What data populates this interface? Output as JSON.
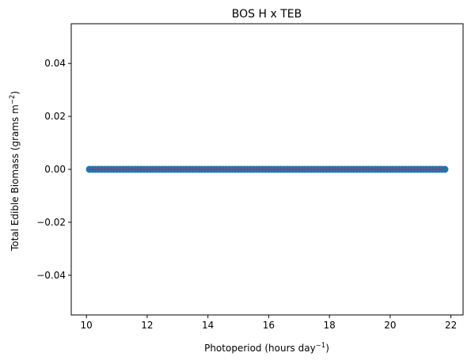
{
  "chart_data": {
    "type": "scatter",
    "title": "BOS H x TEB",
    "xlabel": {
      "base": "Photoperiod (hours day",
      "sup": "−1",
      "tail": ")"
    },
    "ylabel": {
      "base": "Total Edible Biomass (grams m",
      "sup": "−2",
      "tail": ")"
    },
    "xlim": [
      9.5,
      22.4
    ],
    "ylim": [
      -0.055,
      0.055
    ],
    "x_ticks": [
      10,
      12,
      14,
      16,
      18,
      20,
      22
    ],
    "x_tick_labels": [
      "10",
      "12",
      "14",
      "16",
      "18",
      "20",
      "22"
    ],
    "y_ticks": [
      0.04,
      0.02,
      0.0,
      -0.02,
      -0.04
    ],
    "y_tick_labels": [
      "0.04",
      "0.02",
      "0.00",
      "−0.02",
      "−0.04"
    ],
    "grid": false,
    "series": [
      {
        "kind": "scatter",
        "color": "#1f77b4",
        "x_range": [
          10.1,
          21.8
        ],
        "x_step": 0.1,
        "y": 0
      },
      {
        "kind": "line",
        "color": "#d62728",
        "x": [
          10.1,
          21.8
        ],
        "y": [
          0,
          0
        ]
      }
    ]
  }
}
